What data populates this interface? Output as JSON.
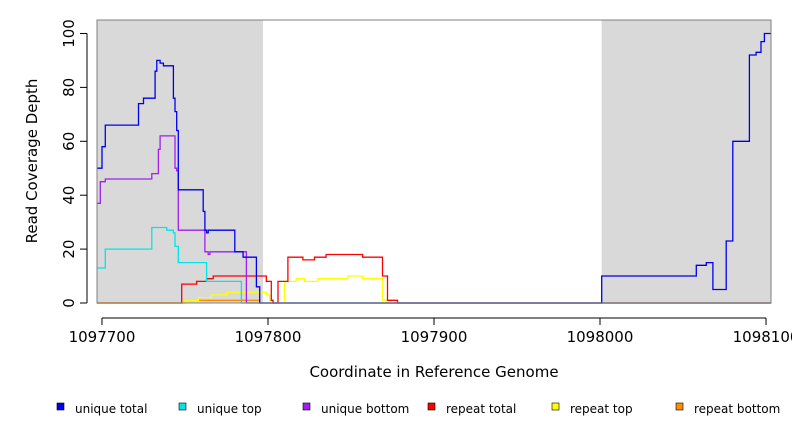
{
  "chart_data": {
    "type": "line",
    "xlabel": "Coordinate in Reference Genome",
    "ylabel": "Read Coverage Depth",
    "xlim": [
      1097697,
      1098103
    ],
    "ylim": [
      0,
      105
    ],
    "x_ticks": [
      1097700,
      1097800,
      1097900,
      1098000,
      1098100
    ],
    "y_ticks": [
      0,
      20,
      40,
      60,
      80,
      100
    ],
    "grid": false,
    "legend_position": "bottom",
    "shaded_regions": [
      {
        "x": [
          1097697,
          1097797
        ],
        "color": "#d9d9d9"
      },
      {
        "x": [
          1098001,
          1098103
        ],
        "color": "#d9d9d9"
      }
    ],
    "series": [
      {
        "name": "unique total",
        "color": "#0000ee",
        "x": [
          1097697,
          1097698,
          1097699,
          1097700,
          1097701,
          1097702,
          1097703,
          1097720,
          1097722,
          1097723,
          1097725,
          1097730,
          1097731,
          1097732,
          1097733,
          1097735,
          1097737,
          1097739,
          1097743,
          1097744,
          1097745,
          1097746,
          1097747,
          1097753,
          1097760,
          1097761,
          1097762,
          1097763,
          1097764,
          1097765,
          1097771,
          1097773,
          1097780,
          1097785,
          1097787,
          1097792,
          1097793,
          1097794,
          1097795,
          1097796,
          1097797,
          1097800,
          1097850,
          1097900,
          1097950,
          1098000,
          1098001,
          1098010,
          1098030,
          1098050,
          1098056,
          1098058,
          1098060,
          1098063,
          1098064,
          1098068,
          1098070,
          1098072,
          1098074,
          1098076,
          1098080,
          1098086,
          1098090,
          1098094,
          1098095,
          1098096,
          1098097,
          1098099,
          1098103
        ],
        "y": [
          50,
          50,
          50,
          58,
          58,
          66,
          66,
          66,
          74,
          74,
          76,
          76,
          76,
          86,
          90,
          89,
          88,
          88,
          76,
          71,
          64,
          42,
          42,
          42,
          42,
          34,
          27,
          26,
          27,
          27,
          27,
          27,
          19,
          17,
          17,
          17,
          6,
          6,
          0,
          0,
          0,
          0,
          0,
          0,
          0,
          0,
          10,
          10,
          10,
          10,
          10,
          14,
          14,
          14,
          15,
          5,
          5,
          5,
          5,
          23,
          60,
          60,
          92,
          93,
          93,
          93,
          97,
          100,
          100
        ]
      },
      {
        "name": "unique top",
        "color": "#00e5e5",
        "x": [
          1097697,
          1097698,
          1097699,
          1097700,
          1097701,
          1097702,
          1097720,
          1097721,
          1097730,
          1097731,
          1097735,
          1097739,
          1097743,
          1097744,
          1097745,
          1097746,
          1097747,
          1097752,
          1097760,
          1097762,
          1097763,
          1097765,
          1097780,
          1097782,
          1097784,
          1097787,
          1097797,
          1098103
        ],
        "y": [
          13,
          13,
          13,
          13,
          13,
          20,
          20,
          20,
          28,
          28,
          28,
          27,
          26,
          21,
          21,
          15,
          15,
          15,
          15,
          15,
          8,
          8,
          8,
          8,
          0,
          0,
          0,
          0
        ]
      },
      {
        "name": "unique bottom",
        "color": "#a020f0",
        "x": [
          1097697,
          1097698,
          1097699,
          1097700,
          1097701,
          1097702,
          1097728,
          1097730,
          1097734,
          1097735,
          1097743,
          1097744,
          1097745,
          1097746,
          1097747,
          1097760,
          1097762,
          1097764,
          1097765,
          1097767,
          1097785,
          1097787,
          1097797,
          1098103
        ],
        "y": [
          37,
          37,
          45,
          45,
          45,
          46,
          46,
          48,
          57,
          62,
          62,
          50,
          49,
          27,
          27,
          27,
          19,
          18,
          19,
          19,
          19,
          0,
          0,
          0
        ]
      },
      {
        "name": "repeat total",
        "color": "#ff0000",
        "x": [
          1097697,
          1097700,
          1097743,
          1097745,
          1097748,
          1097750,
          1097755,
          1097757,
          1097760,
          1097763,
          1097767,
          1097770,
          1097780,
          1097787,
          1097795,
          1097799,
          1097802,
          1097803,
          1097805,
          1097806,
          1097808,
          1097812,
          1097817,
          1097821,
          1097826,
          1097828,
          1097830,
          1097833,
          1097835,
          1097837,
          1097840,
          1097845,
          1097848,
          1097852,
          1097857,
          1097862,
          1097865,
          1097867,
          1097869,
          1097871,
          1097872,
          1097874,
          1097878,
          1097880,
          1097890,
          1097900,
          1098103
        ],
        "y": [
          0,
          0,
          0,
          0,
          7,
          7,
          7,
          8,
          8,
          9,
          10,
          10,
          10,
          10,
          10,
          8,
          1,
          0,
          0,
          8,
          8,
          17,
          17,
          16,
          16,
          17,
          17,
          17,
          18,
          18,
          18,
          18,
          18,
          18,
          17,
          17,
          17,
          17,
          10,
          10,
          1,
          1,
          0,
          0,
          0,
          0,
          0
        ]
      },
      {
        "name": "repeat top",
        "color": "#ffff00",
        "x": [
          1097697,
          1097740,
          1097745,
          1097750,
          1097755,
          1097758,
          1097763,
          1097766,
          1097770,
          1097775,
          1097780,
          1097785,
          1097790,
          1097795,
          1097799,
          1097801,
          1097803,
          1097806,
          1097810,
          1097814,
          1097817,
          1097822,
          1097826,
          1097830,
          1097835,
          1097840,
          1097845,
          1097848,
          1097852,
          1097857,
          1097862,
          1097866,
          1097869,
          1097872,
          1097874,
          1097878,
          1098103
        ],
        "y": [
          0,
          0,
          0,
          1,
          1,
          2,
          2,
          3,
          3,
          4,
          4,
          4,
          4,
          4,
          3,
          1,
          0,
          0,
          8,
          8,
          9,
          8,
          8,
          9,
          9,
          9,
          9,
          10,
          10,
          9,
          9,
          9,
          1,
          1,
          0,
          0,
          0
        ]
      },
      {
        "name": "repeat bottom",
        "color": "#ff8c00",
        "x": [
          1097697,
          1097740,
          1097745,
          1097750,
          1097760,
          1097765,
          1097770,
          1097780,
          1097790,
          1097795,
          1097800,
          1097810,
          1097820,
          1097830,
          1097840,
          1097850,
          1097860,
          1097868,
          1097870,
          1097875,
          1097880,
          1098103
        ],
        "y": [
          0,
          0,
          0,
          1,
          1,
          1,
          1,
          1,
          1,
          0,
          0,
          0,
          0,
          0,
          0,
          0,
          0,
          0,
          0,
          0,
          0,
          0
        ]
      }
    ]
  }
}
